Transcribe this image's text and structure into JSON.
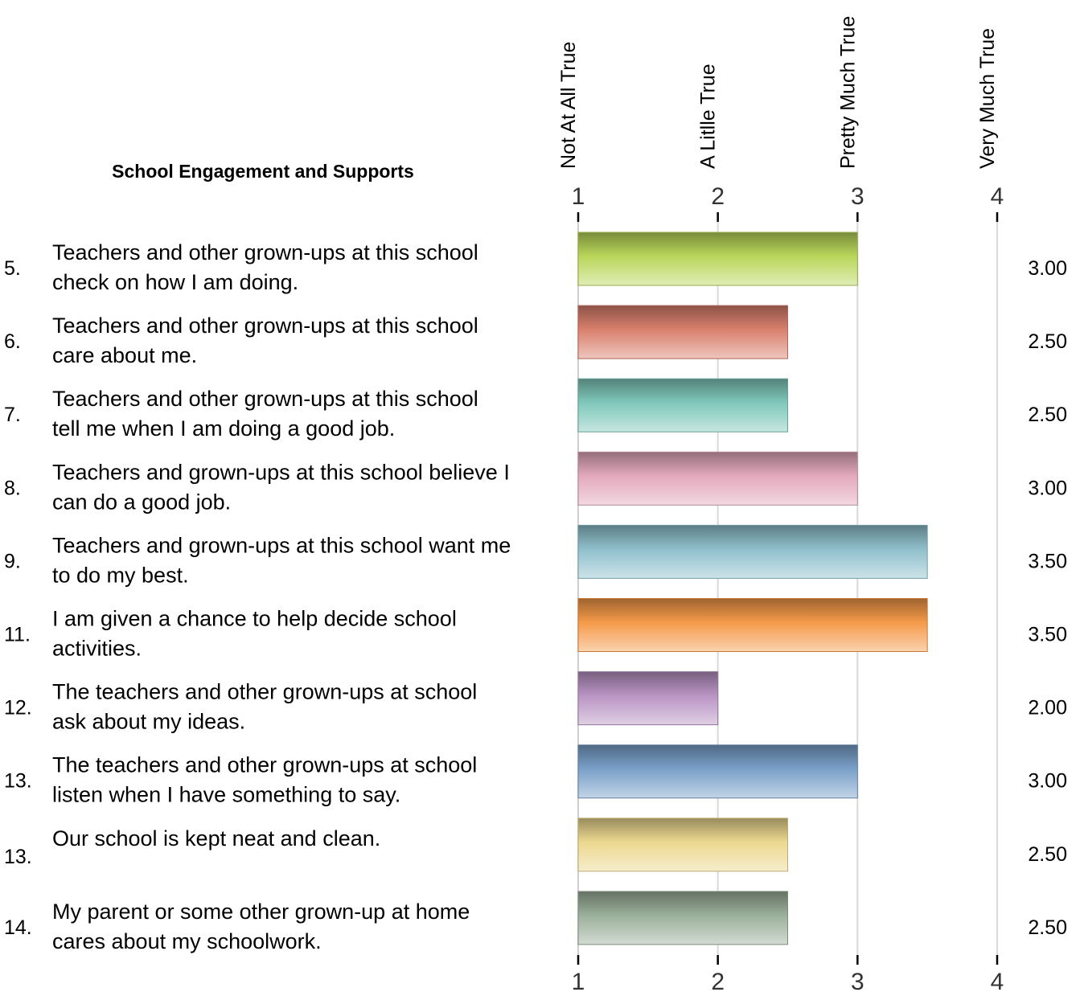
{
  "chart_data": {
    "type": "bar",
    "orientation": "horizontal",
    "title": "School Engagement and Supports",
    "xlim": [
      1,
      4
    ],
    "grid": true,
    "legend": "none",
    "scale_labels": [
      "Not At All True",
      "A Litlle True",
      "Pretty Much True",
      "Very Much True"
    ],
    "ticks": [
      "1",
      "2",
      "3",
      "4"
    ],
    "categories": [
      {
        "num": "5.",
        "lines": [
          "Teachers and other grown-ups at this school",
          "check on how I am doing."
        ],
        "value": 3.0,
        "value_label": "3.00",
        "color": "#b9d65a"
      },
      {
        "num": "6.",
        "lines": [
          "Teachers and other grown-ups at this school",
          "care about me."
        ],
        "value": 2.5,
        "value_label": "2.50",
        "color": "#d9806d"
      },
      {
        "num": "7.",
        "lines": [
          "Teachers and other grown-ups at this school",
          "tell me when I am doing a good job."
        ],
        "value": 2.5,
        "value_label": "2.50",
        "color": "#7fc8bb"
      },
      {
        "num": "8.",
        "lines": [
          "Teachers and grown-ups at this school believe I",
          "can do a good job."
        ],
        "value": 3.0,
        "value_label": "3.00",
        "color": "#e3a9bd"
      },
      {
        "num": "9.",
        "lines": [
          "Teachers and grown-ups at this school want me",
          "to do my best."
        ],
        "value": 3.5,
        "value_label": "3.50",
        "color": "#8fc0cc"
      },
      {
        "num": "11.",
        "lines": [
          "I am given a chance to help decide school",
          "activities."
        ],
        "value": 3.5,
        "value_label": "3.50",
        "color": "#f59a4a"
      },
      {
        "num": "12.",
        "lines": [
          "The teachers and other grown-ups at school",
          "ask about my ideas."
        ],
        "value": 2.0,
        "value_label": "2.00",
        "color": "#b994c3"
      },
      {
        "num": "13.",
        "lines": [
          "The teachers and other grown-ups at school",
          "listen when I have something to say."
        ],
        "value": 3.0,
        "value_label": "3.00",
        "color": "#7aa0c9"
      },
      {
        "num": "13.",
        "lines": [
          "Our school is kept neat and clean."
        ],
        "value": 2.5,
        "value_label": "2.50",
        "color": "#ecd88f"
      },
      {
        "num": "14.",
        "lines": [
          "My parent or some other grown-up at home",
          "cares about my schoolwork."
        ],
        "value": 2.5,
        "value_label": "2.50",
        "color": "#9bb09a"
      }
    ]
  }
}
